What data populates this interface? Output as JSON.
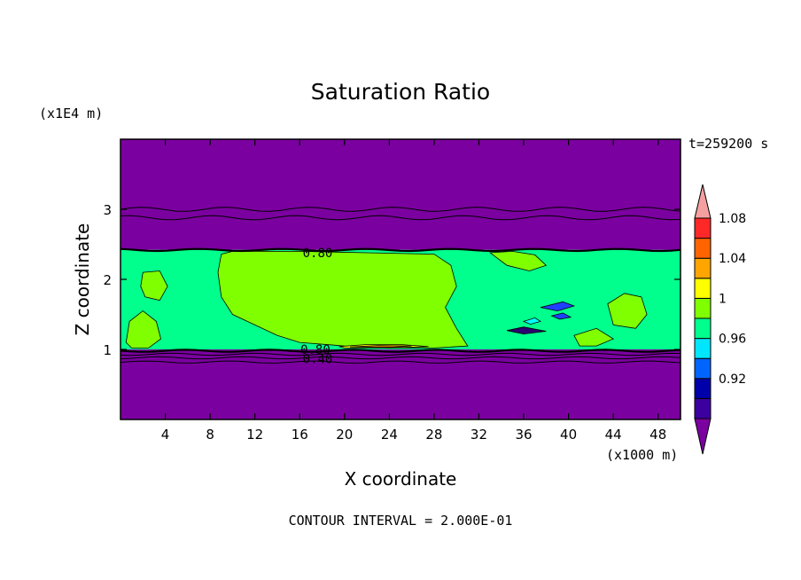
{
  "chart_data": {
    "type": "heatmap",
    "title": "Saturation Ratio",
    "xlabel": "X coordinate",
    "ylabel": "Z coordinate",
    "x_unit_label": "(x1000 m)",
    "y_unit_label": "(x1E4 m)",
    "time_label": "t=259200 s",
    "footer": "CONTOUR INTERVAL = 2.000E-01",
    "xlim": [
      0,
      50
    ],
    "ylim": [
      0,
      4
    ],
    "x_ticks": [
      "4",
      "8",
      "12",
      "16",
      "20",
      "24",
      "28",
      "32",
      "36",
      "40",
      "44",
      "48"
    ],
    "x_tick_values": [
      4,
      8,
      12,
      16,
      20,
      24,
      28,
      32,
      36,
      40,
      44,
      48
    ],
    "y_ticks": [
      "1",
      "2",
      "3"
    ],
    "y_tick_values": [
      1,
      2,
      3
    ],
    "contour_labels": [
      {
        "text": "0.80",
        "x": 17.6,
        "z": 2.38
      },
      {
        "text": "0.80",
        "x": 17.4,
        "z": 1.0
      },
      {
        "text": "0.40",
        "x": 17.6,
        "z": 0.87
      }
    ],
    "layers": [
      {
        "name": "upper",
        "zmin": 2.42,
        "zmax": 4.0,
        "color": "#7b00a0"
      },
      {
        "name": "cloud",
        "zmin": 1.0,
        "zmax": 2.42,
        "color": "#00ff8c"
      },
      {
        "name": "lower",
        "zmin": 0.0,
        "zmax": 1.0,
        "color": "#7b00a0"
      }
    ],
    "contour_lines_z": [
      3.0,
      2.88,
      2.42,
      0.98,
      0.93,
      0.88,
      0.82
    ],
    "regions": [
      {
        "label": "1",
        "color": "#80ff00",
        "points": [
          [
            9,
            2.36
          ],
          [
            10,
            2.4
          ],
          [
            16,
            2.4
          ],
          [
            22,
            2.38
          ],
          [
            28,
            2.36
          ],
          [
            29.5,
            2.2
          ],
          [
            30,
            1.9
          ],
          [
            29,
            1.6
          ],
          [
            30,
            1.3
          ],
          [
            31,
            1.05
          ],
          [
            28,
            1.02
          ],
          [
            24,
            1.02
          ],
          [
            20,
            1.05
          ],
          [
            16,
            1.1
          ],
          [
            14,
            1.2
          ],
          [
            12,
            1.35
          ],
          [
            10,
            1.5
          ],
          [
            9,
            1.75
          ],
          [
            8.7,
            2.1
          ]
        ]
      },
      {
        "label": "1",
        "color": "#80ff00",
        "points": [
          [
            2,
            2.1
          ],
          [
            3.5,
            2.12
          ],
          [
            4.2,
            1.9
          ],
          [
            3.5,
            1.7
          ],
          [
            2.2,
            1.75
          ],
          [
            1.8,
            1.9
          ]
        ]
      },
      {
        "label": "1",
        "color": "#80ff00",
        "points": [
          [
            0.5,
            1.1
          ],
          [
            0.8,
            1.4
          ],
          [
            2,
            1.55
          ],
          [
            3.2,
            1.4
          ],
          [
            3.6,
            1.15
          ],
          [
            2.5,
            1.02
          ],
          [
            1,
            1.02
          ]
        ]
      },
      {
        "label": "1",
        "color": "#80ff00",
        "points": [
          [
            33,
            2.38
          ],
          [
            35,
            2.4
          ],
          [
            37,
            2.35
          ],
          [
            38,
            2.2
          ],
          [
            36.5,
            2.12
          ],
          [
            34.5,
            2.2
          ]
        ]
      },
      {
        "label": "1",
        "color": "#80ff00",
        "points": [
          [
            43.5,
            1.65
          ],
          [
            45,
            1.8
          ],
          [
            46.5,
            1.75
          ],
          [
            47,
            1.5
          ],
          [
            46,
            1.3
          ],
          [
            44,
            1.35
          ]
        ]
      },
      {
        "label": "1",
        "color": "#80ff00",
        "points": [
          [
            40.5,
            1.2
          ],
          [
            42.5,
            1.3
          ],
          [
            44,
            1.15
          ],
          [
            42.5,
            1.05
          ],
          [
            41,
            1.05
          ]
        ]
      },
      {
        "label": "1.04",
        "color": "#ffff00",
        "points": [
          [
            19.5,
            1.04
          ],
          [
            22,
            1.07
          ],
          [
            25,
            1.07
          ],
          [
            27.5,
            1.04
          ],
          [
            24,
            1.02
          ],
          [
            20,
            1.02
          ]
        ]
      },
      {
        "label": "1.08",
        "color": "#ff8c00",
        "points": [
          [
            20.5,
            1.035
          ],
          [
            23,
            1.055
          ],
          [
            26,
            1.05
          ],
          [
            24,
            1.03
          ]
        ]
      },
      {
        "label": "0.92",
        "color": "#2040ff",
        "points": [
          [
            37.5,
            1.6
          ],
          [
            39.5,
            1.68
          ],
          [
            40.5,
            1.62
          ],
          [
            39,
            1.55
          ]
        ]
      },
      {
        "label": "0.88",
        "color": "#2a0070",
        "points": [
          [
            34.5,
            1.27
          ],
          [
            36,
            1.32
          ],
          [
            38,
            1.26
          ],
          [
            36,
            1.22
          ]
        ]
      },
      {
        "label": "0.92",
        "color": "#2040ff",
        "points": [
          [
            38.5,
            1.48
          ],
          [
            39.5,
            1.52
          ],
          [
            40.2,
            1.46
          ],
          [
            39.2,
            1.43
          ]
        ]
      },
      {
        "label": "0.96",
        "color": "#00ffff",
        "points": [
          [
            36,
            1.4
          ],
          [
            37,
            1.45
          ],
          [
            37.5,
            1.4
          ],
          [
            36.6,
            1.36
          ]
        ]
      }
    ],
    "colorbar": {
      "colors": [
        "#7b00a0",
        "#3c00a0",
        "#0000aa",
        "#0064ff",
        "#00e6ff",
        "#00ff8c",
        "#80ff00",
        "#ffff00",
        "#ffa500",
        "#ff6400",
        "#ff2828",
        "#f5a0a0"
      ],
      "labels": [
        "0.92",
        "0.96",
        "1",
        "1.04",
        "1.08"
      ]
    }
  }
}
